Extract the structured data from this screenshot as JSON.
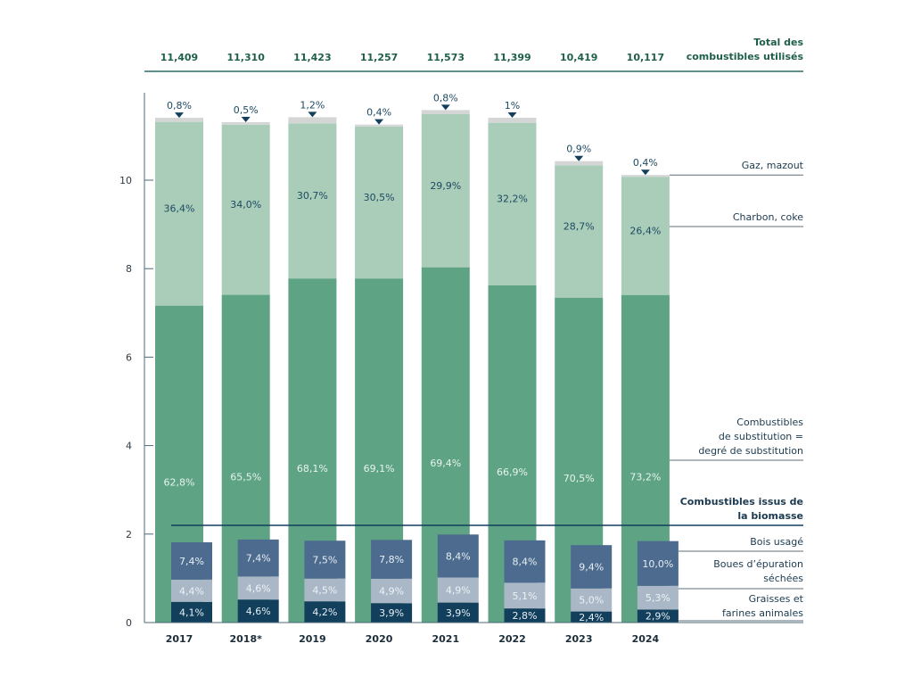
{
  "chart_data": {
    "type": "bar",
    "subtype": "stacked-with-overlay",
    "title": "",
    "xlabel": "",
    "ylabel": "",
    "ylim": [
      0,
      12
    ],
    "yticks": [
      0,
      2,
      4,
      6,
      8,
      10
    ],
    "categories": [
      "2017",
      "2018*",
      "2019",
      "2020",
      "2021",
      "2022",
      "2023",
      "2024"
    ],
    "totals_header": "Total des combustibles utilisés",
    "totals_header_lines": [
      "Total des",
      "combustibles utilisés"
    ],
    "totals_labels": [
      "11,409",
      "11,310",
      "11,423",
      "11,257",
      "11,573",
      "11,399",
      "10,419",
      "10,117"
    ],
    "totals": [
      11.409,
      11.31,
      11.423,
      11.257,
      11.573,
      11.399,
      10.419,
      10.117
    ],
    "series": [
      {
        "name": "Combustibles de substitution = degré de substitution",
        "legend_lines": [
          "Combustibles",
          "de substitution =",
          "degré de substitution"
        ],
        "color": "#5ea384",
        "label_color": "#e8f3ee",
        "labels": [
          "62,8%",
          "65,5%",
          "68,1%",
          "69,1%",
          "69,4%",
          "66,9%",
          "70,5%",
          "73,2%"
        ],
        "values": [
          62.8,
          65.5,
          68.1,
          69.1,
          69.4,
          66.9,
          70.5,
          73.2
        ]
      },
      {
        "name": "Charbon, coke",
        "legend_lines": [
          "Charbon, coke"
        ],
        "color": "#a9cdb9",
        "label_color": "#1d4a63",
        "labels": [
          "36,4%",
          "34,0%",
          "30,7%",
          "30,5%",
          "29,9%",
          "32,2%",
          "28,7%",
          "26,4%"
        ],
        "values": [
          36.4,
          34.0,
          30.7,
          30.5,
          29.9,
          32.2,
          28.7,
          26.4
        ]
      },
      {
        "name": "Gaz, mazout",
        "legend_lines": [
          "Gaz, mazout"
        ],
        "color": "#d3d6d5",
        "label_color": "#1d4a63",
        "labels": [
          "0,8%",
          "0,5%",
          "1,2%",
          "0,4%",
          "0,8%",
          "1%",
          "0,9%",
          "0,4%"
        ],
        "values": [
          0.8,
          0.5,
          1.2,
          0.4,
          0.8,
          1.0,
          0.9,
          0.4
        ]
      }
    ],
    "biomass": {
      "title": "Combustibles issus de la biomasse",
      "title_lines": [
        "Combustibles issus de",
        "la biomasse"
      ],
      "series": [
        {
          "name": "Graisses et farines animales",
          "legend_lines": [
            "Graisses et",
            "farines animales"
          ],
          "color": "#123f5c",
          "label_color": "#e6eef4",
          "labels": [
            "4,1%",
            "4,6%",
            "4,2%",
            "3,9%",
            "3,9%",
            "2,8%",
            "2,4%",
            "2,9%"
          ],
          "values": [
            4.1,
            4.6,
            4.2,
            3.9,
            3.9,
            2.8,
            2.4,
            2.9
          ]
        },
        {
          "name": "Boues d’épuration séchées",
          "legend_lines": [
            "Boues d’épuration",
            "séchées"
          ],
          "color": "#a9b7c7",
          "label_color": "#eef2f6",
          "labels": [
            "4,4%",
            "4,6%",
            "4,5%",
            "4,9%",
            "4,9%",
            "5,1%",
            "5,0%",
            "5,3%"
          ],
          "values": [
            4.4,
            4.6,
            4.5,
            4.9,
            4.9,
            5.1,
            5.0,
            5.3
          ]
        },
        {
          "name": "Bois usagé",
          "legend_lines": [
            "Bois usagé"
          ],
          "color": "#4d6b8e",
          "label_color": "#e6eef4",
          "labels": [
            "7,4%",
            "7,4%",
            "7,5%",
            "7,8%",
            "8,4%",
            "8,4%",
            "9,4%",
            "10,0%"
          ],
          "values": [
            7.4,
            7.4,
            7.5,
            7.8,
            8.4,
            8.4,
            9.4,
            10.0
          ]
        }
      ]
    },
    "grid": false,
    "legend": "right"
  }
}
